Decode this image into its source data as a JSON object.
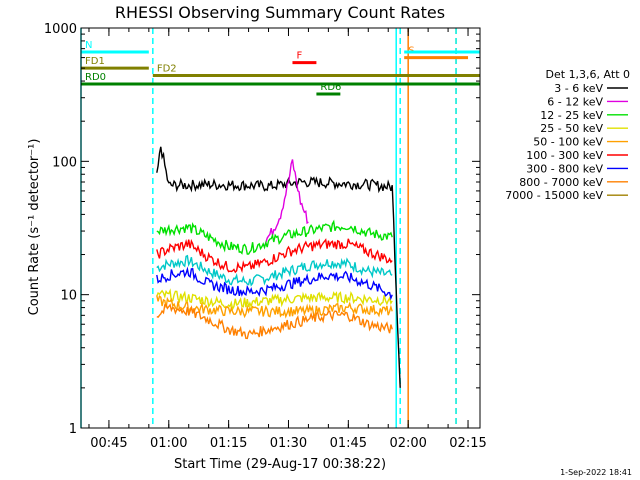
{
  "chart_data": {
    "type": "line",
    "title": "RHESSI Observing Summary Count Rates",
    "xlabel": "Start Time (29-Aug-17 00:38:22)",
    "ylabel": "Count Rate (s⁻¹ detector⁻¹)",
    "y_scale": "log",
    "ylim": [
      1,
      1000
    ],
    "xlim": [
      "00:38",
      "02:18"
    ],
    "x_ticks": [
      "00:45",
      "01:00",
      "01:15",
      "01:30",
      "01:45",
      "02:00",
      "02:15"
    ],
    "y_ticks": [
      "1",
      "10",
      "100",
      "1000"
    ],
    "legend_title": "Det 1,3,6, Att 0",
    "legend_position": "right",
    "series": [
      {
        "name": "3 - 6 keV",
        "color": "#000000",
        "x": [
          "00:57",
          "00:58",
          "01:00",
          "01:10",
          "01:20",
          "01:25",
          "01:30",
          "01:33",
          "01:40",
          "01:50",
          "01:56",
          "01:58"
        ],
        "values": [
          75,
          130,
          66,
          67,
          66,
          65,
          68,
          70,
          69,
          67,
          64,
          2
        ]
      },
      {
        "name": "6 - 12 keV",
        "color": "#e000e0",
        "x": [
          "01:24",
          "01:26",
          "01:28",
          "01:30",
          "01:31",
          "01:33",
          "01:35"
        ],
        "values": [
          25,
          30,
          40,
          70,
          100,
          50,
          35
        ]
      },
      {
        "name": "12 - 25 keV",
        "color": "#00e000",
        "x": [
          "00:57",
          "01:00",
          "01:05",
          "01:10",
          "01:15",
          "01:20",
          "01:25",
          "01:30",
          "01:35",
          "01:40",
          "01:45",
          "01:50",
          "01:56"
        ],
        "values": [
          30,
          31,
          32,
          27,
          23,
          22,
          25,
          28,
          30,
          32,
          33,
          29,
          27
        ]
      },
      {
        "name": "25 - 50 keV",
        "color": "#e0e000",
        "x": [
          "00:57",
          "01:05",
          "01:15",
          "01:25",
          "01:35",
          "01:45",
          "01:56"
        ],
        "values": [
          10,
          9.5,
          8.5,
          9,
          9.5,
          9.5,
          9
        ]
      },
      {
        "name": "50 - 100 keV",
        "color": "#ffa000",
        "x": [
          "00:57",
          "01:05",
          "01:15",
          "01:25",
          "01:35",
          "01:45",
          "01:56"
        ],
        "values": [
          9,
          8,
          7.5,
          7.5,
          7.5,
          8,
          7.5
        ]
      },
      {
        "name": "100 - 300 keV",
        "color": "#ff0000",
        "x": [
          "00:57",
          "01:00",
          "01:05",
          "01:10",
          "01:15",
          "01:20",
          "01:25",
          "01:30",
          "01:35",
          "01:40",
          "01:45",
          "01:50",
          "01:56"
        ],
        "values": [
          20,
          22,
          24,
          19,
          16,
          16,
          18,
          21,
          23,
          24,
          24,
          21,
          18
        ]
      },
      {
        "name": "300 - 800 keV",
        "color": "#0000ff",
        "x": [
          "00:57",
          "01:00",
          "01:05",
          "01:10",
          "01:15",
          "01:20",
          "01:25",
          "01:30",
          "01:35",
          "01:40",
          "01:45",
          "01:50",
          "01:56"
        ],
        "values": [
          13,
          14,
          15,
          12,
          11,
          10.5,
          11,
          12,
          13,
          14,
          13.5,
          12,
          10
        ]
      },
      {
        "name": "800 - 7000 keV",
        "color": "#ff8000",
        "x": [
          "00:57",
          "01:00",
          "01:05",
          "01:10",
          "01:15",
          "01:20",
          "01:25",
          "01:30",
          "01:35",
          "01:40",
          "01:45",
          "01:50",
          "01:56"
        ],
        "values": [
          7,
          8,
          7.5,
          6.5,
          5.5,
          5,
          5.5,
          6,
          6.5,
          7,
          7,
          6,
          5.5
        ]
      },
      {
        "name": "7000 - 15000 keV",
        "color": "#a08000",
        "x": [],
        "values": []
      }
    ],
    "extra_series": [
      {
        "color": "#00c8c8",
        "x": [
          "00:57",
          "01:00",
          "01:05",
          "01:10",
          "01:15",
          "01:20",
          "01:25",
          "01:30",
          "01:35",
          "01:40",
          "01:45",
          "01:50",
          "01:56"
        ],
        "values": [
          16,
          17,
          18,
          15,
          13,
          12.5,
          13.5,
          15,
          16.5,
          17.5,
          17,
          15,
          14
        ]
      }
    ],
    "flag_bars": [
      {
        "label": "N",
        "color": "#00ffff",
        "y": 660,
        "x_start": "00:38",
        "x_end": "00:55"
      },
      {
        "label": "FD1",
        "color": "#808000",
        "y": 500,
        "x_start": "00:38",
        "x_end": "00:55"
      },
      {
        "label": "FD2",
        "color": "#808000",
        "y": 440,
        "x_start": "00:56",
        "x_end": "02:18"
      },
      {
        "label": "RD0",
        "color": "#008000",
        "y": 380,
        "x_start": "00:38",
        "x_end": "02:18"
      },
      {
        "label": "RD6",
        "color": "#008000",
        "y": 320,
        "x_start": "01:37",
        "x_end": "01:43"
      },
      {
        "label": "F",
        "color": "#ff0000",
        "y": 550,
        "x_start": "01:31",
        "x_end": "01:37"
      },
      {
        "label": "S",
        "color": "#ff8000",
        "y": 600,
        "x_start": "01:59",
        "x_end": "02:15"
      },
      {
        "label": "",
        "color": "#00ffff",
        "y": 660,
        "x_start": "01:59",
        "x_end": "02:18"
      }
    ],
    "vertical_markers": [
      {
        "x": "00:38",
        "color": "#00ffff",
        "style": "solid"
      },
      {
        "x": "00:56",
        "color": "#00ffff",
        "style": "dashed"
      },
      {
        "x": "01:57",
        "color": "#00ffff",
        "style": "solid"
      },
      {
        "x": "01:58",
        "color": "#00ffff",
        "style": "dashed"
      },
      {
        "x": "02:00",
        "color": "#ff8000",
        "style": "solid"
      },
      {
        "x": "02:12",
        "color": "#ff8000",
        "style": "dashed"
      },
      {
        "x": "02:12",
        "color": "#00ffff",
        "style": "dashed"
      }
    ]
  },
  "footer": {
    "timestamp": "1-Sep-2022 18:41"
  }
}
